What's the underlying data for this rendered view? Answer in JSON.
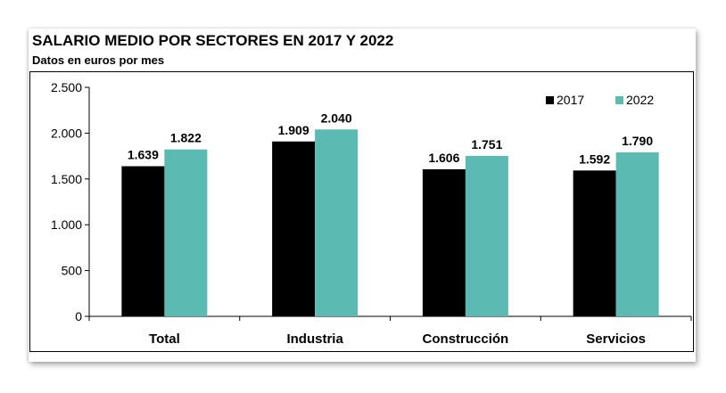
{
  "chart_data": {
    "type": "bar",
    "title": "SALARIO MEDIO POR SECTORES EN 2017 Y 2022",
    "subtitle": "Datos en euros por mes",
    "categories": [
      "Total",
      "Industria",
      "Construcción",
      "Servicios"
    ],
    "series": [
      {
        "name": "2017",
        "values": [
          1639,
          1909,
          1606,
          1592
        ],
        "labels": [
          "1.639",
          "1.909",
          "1.606",
          "1.592"
        ],
        "color": "#000000"
      },
      {
        "name": "2022",
        "values": [
          1822,
          2040,
          1751,
          1790
        ],
        "labels": [
          "1.822",
          "2.040",
          "1.751",
          "1.790"
        ],
        "color": "#5bbab2"
      }
    ],
    "ylim": [
      0,
      2500
    ],
    "yticks": [
      0,
      500,
      1000,
      1500,
      2000,
      2500
    ],
    "ytick_labels": [
      "0",
      "500",
      "1.000",
      "1.500",
      "2.000",
      "2.500"
    ],
    "grid": false,
    "legend_position": "top-right"
  }
}
